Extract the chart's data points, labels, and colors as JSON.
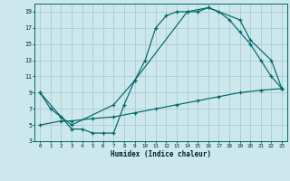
{
  "xlabel": "Humidex (Indice chaleur)",
  "bg_color": "#cce8ec",
  "grid_color": "#aaccd4",
  "line_color": "#006868",
  "xlim": [
    -0.5,
    23.5
  ],
  "ylim": [
    3,
    20
  ],
  "xticks": [
    0,
    1,
    2,
    3,
    4,
    5,
    6,
    7,
    8,
    9,
    10,
    11,
    12,
    13,
    14,
    15,
    16,
    17,
    18,
    19,
    20,
    21,
    22,
    23
  ],
  "yticks": [
    3,
    5,
    7,
    9,
    11,
    13,
    15,
    17,
    19
  ],
  "curve1_x": [
    0,
    1,
    2,
    3,
    4,
    5,
    6,
    7,
    8,
    9,
    10,
    11,
    12,
    13,
    14,
    15,
    16,
    17,
    18,
    19,
    20,
    21,
    22,
    23
  ],
  "curve1_y": [
    9,
    7,
    6,
    4.5,
    4.5,
    4,
    4,
    4,
    7.5,
    10.5,
    13,
    17,
    18.5,
    19,
    19,
    19,
    19.5,
    19,
    18,
    16.5,
    15,
    13,
    11,
    9.5
  ],
  "curve2_x": [
    0,
    2,
    3,
    7,
    9,
    14,
    16,
    19,
    20,
    22,
    23
  ],
  "curve2_y": [
    9,
    6,
    5,
    7.5,
    10.5,
    19,
    19.5,
    18,
    15.5,
    13,
    9.5
  ],
  "curve3_x": [
    0,
    2,
    3,
    5,
    7,
    9,
    11,
    13,
    15,
    17,
    19,
    21,
    23
  ],
  "curve3_y": [
    5,
    5.5,
    5.5,
    5.8,
    6,
    6.5,
    7,
    7.5,
    8,
    8.5,
    9,
    9.3,
    9.5
  ]
}
